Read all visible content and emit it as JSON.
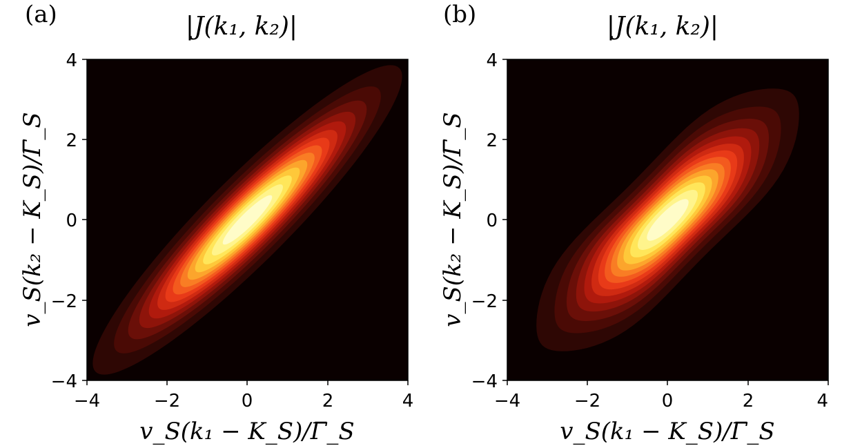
{
  "chart_data": [
    {
      "type": "heatmap",
      "panel_label": "(a)",
      "title": "|J(k₁, k₂)|",
      "xlabel": "v_S(k₁ − K_S)/Γ̅_S",
      "ylabel": "v_S(k₂ − K_S)/Γ̅_S",
      "xlim": [
        -4,
        4
      ],
      "ylim": [
        -4,
        4
      ],
      "xticks": [
        "−4",
        "−2",
        "0",
        "2",
        "4"
      ],
      "yticks": [
        "−4",
        "−2",
        "0",
        "2",
        "4"
      ],
      "colormap": "hot",
      "field": {
        "kind": "gaussian",
        "center": [
          0,
          0
        ],
        "orientation_deg": -45,
        "sigma_major": 2.3,
        "sigma_minor": 0.45
      }
    },
    {
      "type": "heatmap",
      "panel_label": "(b)",
      "title": "|J(k₁, k₂)|",
      "xlabel": "v_S(k₁ − K_S)/Γ̅_S",
      "ylabel": "v_S(k₂ − K_S)/Γ̅_S",
      "xlim": [
        -4,
        4
      ],
      "ylim": [
        -4,
        4
      ],
      "xticks": [
        "−4",
        "−2",
        "0",
        "2",
        "4"
      ],
      "yticks": [
        "−4",
        "−2",
        "0",
        "2",
        "4"
      ],
      "colormap": "hot",
      "field": {
        "kind": "gaussian-with-shoulders",
        "center": [
          0,
          0
        ],
        "orientation_deg": -45,
        "sigma_major": 1.9,
        "sigma_minor": 0.55
      }
    }
  ],
  "colors": {
    "background": "#0a0000",
    "levels": [
      "#0a0000",
      "#2e0704",
      "#4a0a05",
      "#6a0f08",
      "#8e140a",
      "#b01a0d",
      "#cf2a12",
      "#e83a18",
      "#f35a1e",
      "#f97d24",
      "#fca52c",
      "#fec83a",
      "#ffe65a",
      "#fff48c",
      "#fffcc8"
    ]
  }
}
